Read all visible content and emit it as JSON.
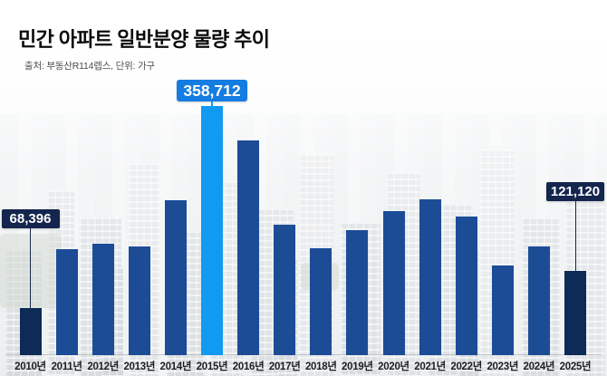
{
  "header": {
    "title": "민간 아파트 일반분양 물량 추이",
    "source": "출처: 부동산R114렙스, 단위: 가구"
  },
  "theme": {
    "bar_default": "#1d4c97",
    "bar_highlight": "#119af2",
    "bar_dark": "#0e2a56",
    "callout_blue": "#157ce2",
    "callout_navy": "#14264e",
    "connector_navy": "#1b2b4a",
    "axis_line": "#c2c6c9",
    "xlabel_color": "#1e1e1e"
  },
  "chart_data": {
    "type": "bar",
    "title": "민간 아파트 일반분양 물량 추이",
    "source": "출처: 부동산R114렙스, 단위: 가구",
    "unit": "가구",
    "grid": false,
    "legend": false,
    "ylim": [
      0,
      380000
    ],
    "categories": [
      "2010년",
      "2011년",
      "2012년",
      "2013년",
      "2014년",
      "2015년",
      "2016년",
      "2017년",
      "2018년",
      "2019년",
      "2020년",
      "2021년",
      "2022년",
      "2023년",
      "2024년",
      "2025년"
    ],
    "values": [
      68396,
      152000,
      160000,
      157000,
      223000,
      358712,
      309000,
      188000,
      154000,
      180000,
      207000,
      224000,
      200000,
      129000,
      156000,
      121120
    ],
    "bar_styles": [
      "dark",
      "default",
      "default",
      "default",
      "default",
      "highlight",
      "default",
      "default",
      "default",
      "default",
      "default",
      "default",
      "default",
      "default",
      "default",
      "dark"
    ],
    "annotations": [
      {
        "index": 0,
        "label": "68,396",
        "style": "navy",
        "box_top": 231
      },
      {
        "index": 5,
        "label": "358,712",
        "style": "blue",
        "box_top": 88
      },
      {
        "index": 15,
        "label": "121,120",
        "style": "navy",
        "box_top": 201
      }
    ]
  }
}
